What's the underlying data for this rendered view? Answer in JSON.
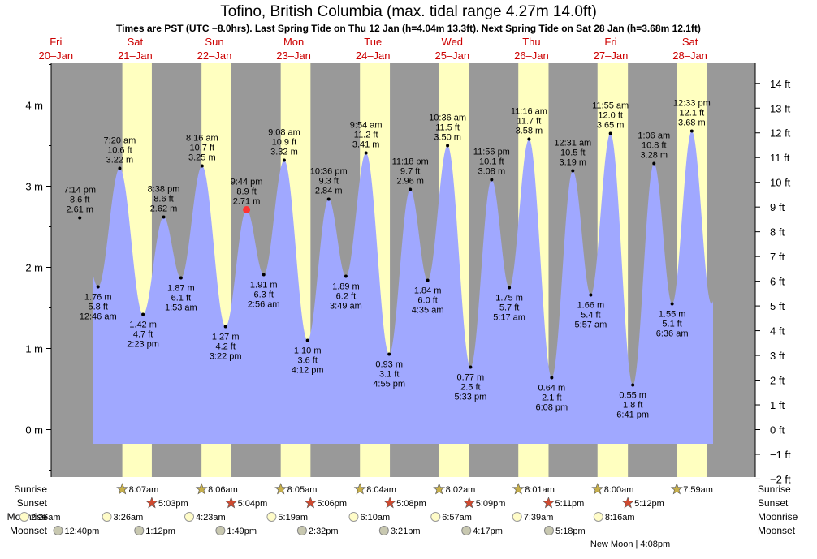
{
  "header": {
    "title": "Tofino, British Columbia (max. tidal range 4.27m 14.0ft)",
    "subtitle": "Times are PST (UTC −8.0hrs). Last Spring Tide on Thu 12 Jan (h=4.04m 13.3ft). Next Spring Tide on Sat 28 Jan (h=3.68m 12.1ft)"
  },
  "colors": {
    "night": "#999999",
    "day": "#ffffc0",
    "water": "#a0a8ff",
    "axis_bg": "#ffffff",
    "current_marker": "#ff3333",
    "day_label": "#cc0000"
  },
  "row_labels": [
    "Sunrise",
    "Sunset",
    "Moonrise",
    "Moonset"
  ],
  "moon_phase_note": "New Moon | 4:08pm",
  "chart_data": {
    "type": "area",
    "title": "Tofino, British Columbia (max. tidal range 4.27m 14.0ft)",
    "start_day": "Fri 20 Jan",
    "days": [
      {
        "dow": "Fri",
        "date": "20–Jan"
      },
      {
        "dow": "Sat",
        "date": "21–Jan"
      },
      {
        "dow": "Sun",
        "date": "22–Jan"
      },
      {
        "dow": "Mon",
        "date": "23–Jan"
      },
      {
        "dow": "Tue",
        "date": "24–Jan"
      },
      {
        "dow": "Wed",
        "date": "25–Jan"
      },
      {
        "dow": "Thu",
        "date": "26–Jan"
      },
      {
        "dow": "Fri",
        "date": "27–Jan"
      },
      {
        "dow": "Sat",
        "date": "28–Jan"
      }
    ],
    "y_left": {
      "unit": "m",
      "ticks": [
        0,
        1,
        2,
        3,
        4
      ],
      "ylim": [
        -0.6,
        4.5
      ]
    },
    "y_right": {
      "unit": "ft",
      "ticks": [
        -2,
        -1,
        0,
        1,
        2,
        3,
        4,
        5,
        6,
        7,
        8,
        9,
        10,
        11,
        12,
        13,
        14
      ]
    },
    "tides": [
      {
        "day": 0,
        "time": "7:14 pm",
        "m": 2.61,
        "ft": "8.6 ft",
        "label_m": "2.61 m",
        "type": "high"
      },
      {
        "day": 1,
        "time": "12:46 am",
        "m": 1.76,
        "ft": "5.8 ft",
        "label_m": "1.76 m",
        "type": "low"
      },
      {
        "day": 1,
        "time": "7:20 am",
        "m": 3.22,
        "ft": "10.6 ft",
        "label_m": "3.22 m",
        "type": "high"
      },
      {
        "day": 1,
        "time": "2:23 pm",
        "m": 1.42,
        "ft": "4.7 ft",
        "label_m": "1.42 m",
        "type": "low"
      },
      {
        "day": 1,
        "time": "8:38 pm",
        "m": 2.62,
        "ft": "8.6 ft",
        "label_m": "2.62 m",
        "type": "high"
      },
      {
        "day": 2,
        "time": "1:53 am",
        "m": 1.87,
        "ft": "6.1 ft",
        "label_m": "1.87 m",
        "type": "low"
      },
      {
        "day": 2,
        "time": "8:16 am",
        "m": 3.25,
        "ft": "10.7 ft",
        "label_m": "3.25 m",
        "type": "high"
      },
      {
        "day": 2,
        "time": "3:22 pm",
        "m": 1.27,
        "ft": "4.2 ft",
        "label_m": "1.27 m",
        "type": "low"
      },
      {
        "day": 2,
        "time": "9:44 pm",
        "m": 2.71,
        "ft": "8.9 ft",
        "label_m": "2.71 m",
        "type": "high",
        "current": true
      },
      {
        "day": 3,
        "time": "2:56 am",
        "m": 1.91,
        "ft": "6.3 ft",
        "label_m": "1.91 m",
        "type": "low"
      },
      {
        "day": 3,
        "time": "9:08 am",
        "m": 3.32,
        "ft": "10.9 ft",
        "label_m": "3.32 m",
        "type": "high"
      },
      {
        "day": 3,
        "time": "4:12 pm",
        "m": 1.1,
        "ft": "3.6 ft",
        "label_m": "1.10 m",
        "type": "low"
      },
      {
        "day": 3,
        "time": "10:36 pm",
        "m": 2.84,
        "ft": "9.3 ft",
        "label_m": "2.84 m",
        "type": "high"
      },
      {
        "day": 4,
        "time": "3:49 am",
        "m": 1.89,
        "ft": "6.2 ft",
        "label_m": "1.89 m",
        "type": "low"
      },
      {
        "day": 4,
        "time": "9:54 am",
        "m": 3.41,
        "ft": "11.2 ft",
        "label_m": "3.41 m",
        "type": "high"
      },
      {
        "day": 4,
        "time": "4:55 pm",
        "m": 0.93,
        "ft": "3.1 ft",
        "label_m": "0.93 m",
        "type": "low"
      },
      {
        "day": 4,
        "time": "11:18 pm",
        "m": 2.96,
        "ft": "9.7 ft",
        "label_m": "2.96 m",
        "type": "high"
      },
      {
        "day": 5,
        "time": "4:35 am",
        "m": 1.84,
        "ft": "6.0 ft",
        "label_m": "1.84 m",
        "type": "low"
      },
      {
        "day": 5,
        "time": "10:36 am",
        "m": 3.5,
        "ft": "11.5 ft",
        "label_m": "3.50 m",
        "type": "high"
      },
      {
        "day": 5,
        "time": "5:33 pm",
        "m": 0.77,
        "ft": "2.5 ft",
        "label_m": "0.77 m",
        "type": "low"
      },
      {
        "day": 5,
        "time": "11:56 pm",
        "m": 3.08,
        "ft": "10.1 ft",
        "label_m": "3.08 m",
        "type": "high"
      },
      {
        "day": 6,
        "time": "5:17 am",
        "m": 1.75,
        "ft": "5.7 ft",
        "label_m": "1.75 m",
        "type": "low"
      },
      {
        "day": 6,
        "time": "11:16 am",
        "m": 3.58,
        "ft": "11.7 ft",
        "label_m": "3.58 m",
        "type": "high"
      },
      {
        "day": 6,
        "time": "6:08 pm",
        "m": 0.64,
        "ft": "2.1 ft",
        "label_m": "0.64 m",
        "type": "low"
      },
      {
        "day": 7,
        "time": "12:31 am",
        "m": 3.19,
        "ft": "10.5 ft",
        "label_m": "3.19 m",
        "type": "high"
      },
      {
        "day": 7,
        "time": "5:57 am",
        "m": 1.66,
        "ft": "5.4 ft",
        "label_m": "1.66 m",
        "type": "low"
      },
      {
        "day": 7,
        "time": "11:55 am",
        "m": 3.65,
        "ft": "12.0 ft",
        "label_m": "3.65 m",
        "type": "high"
      },
      {
        "day": 7,
        "time": "6:41 pm",
        "m": 0.55,
        "ft": "1.8 ft",
        "label_m": "0.55 m",
        "type": "low"
      },
      {
        "day": 8,
        "time": "1:06 am",
        "m": 3.28,
        "ft": "10.8 ft",
        "label_m": "3.28 m",
        "type": "high"
      },
      {
        "day": 8,
        "time": "6:36 am",
        "m": 1.55,
        "ft": "5.1 ft",
        "label_m": "1.55 m",
        "type": "low"
      },
      {
        "day": 8,
        "time": "12:33 pm",
        "m": 3.68,
        "ft": "12.1 ft",
        "label_m": "3.68 m",
        "type": "high"
      }
    ],
    "daylight": [
      {
        "day": 1,
        "rise": "8:07am",
        "set": "5:03pm"
      },
      {
        "day": 2,
        "rise": "8:06am",
        "set": "5:04pm"
      },
      {
        "day": 3,
        "rise": "8:05am",
        "set": "5:06pm"
      },
      {
        "day": 4,
        "rise": "8:04am",
        "set": "5:08pm"
      },
      {
        "day": 5,
        "rise": "8:02am",
        "set": "5:09pm"
      },
      {
        "day": 6,
        "rise": "8:01am",
        "set": "5:11pm"
      },
      {
        "day": 7,
        "rise": "8:00am",
        "set": "5:12pm"
      },
      {
        "day": 8,
        "rise": "7:59am",
        "set": null
      }
    ],
    "moonrise": [
      {
        "day": 0,
        "time": "2:26am"
      },
      {
        "day": 1,
        "time": "3:26am"
      },
      {
        "day": 2,
        "time": "4:23am"
      },
      {
        "day": 3,
        "time": "5:19am"
      },
      {
        "day": 4,
        "time": "6:10am"
      },
      {
        "day": 5,
        "time": "6:57am"
      },
      {
        "day": 6,
        "time": "7:39am"
      },
      {
        "day": 7,
        "time": "8:16am"
      }
    ],
    "moonset": [
      {
        "day": 0,
        "time": "12:40pm"
      },
      {
        "day": 1,
        "time": "1:12pm"
      },
      {
        "day": 2,
        "time": "1:49pm"
      },
      {
        "day": 3,
        "time": "2:32pm"
      },
      {
        "day": 4,
        "time": "3:21pm"
      },
      {
        "day": 5,
        "time": "4:17pm"
      },
      {
        "day": 6,
        "time": "5:18pm"
      }
    ],
    "grid": false,
    "legend": "none"
  }
}
